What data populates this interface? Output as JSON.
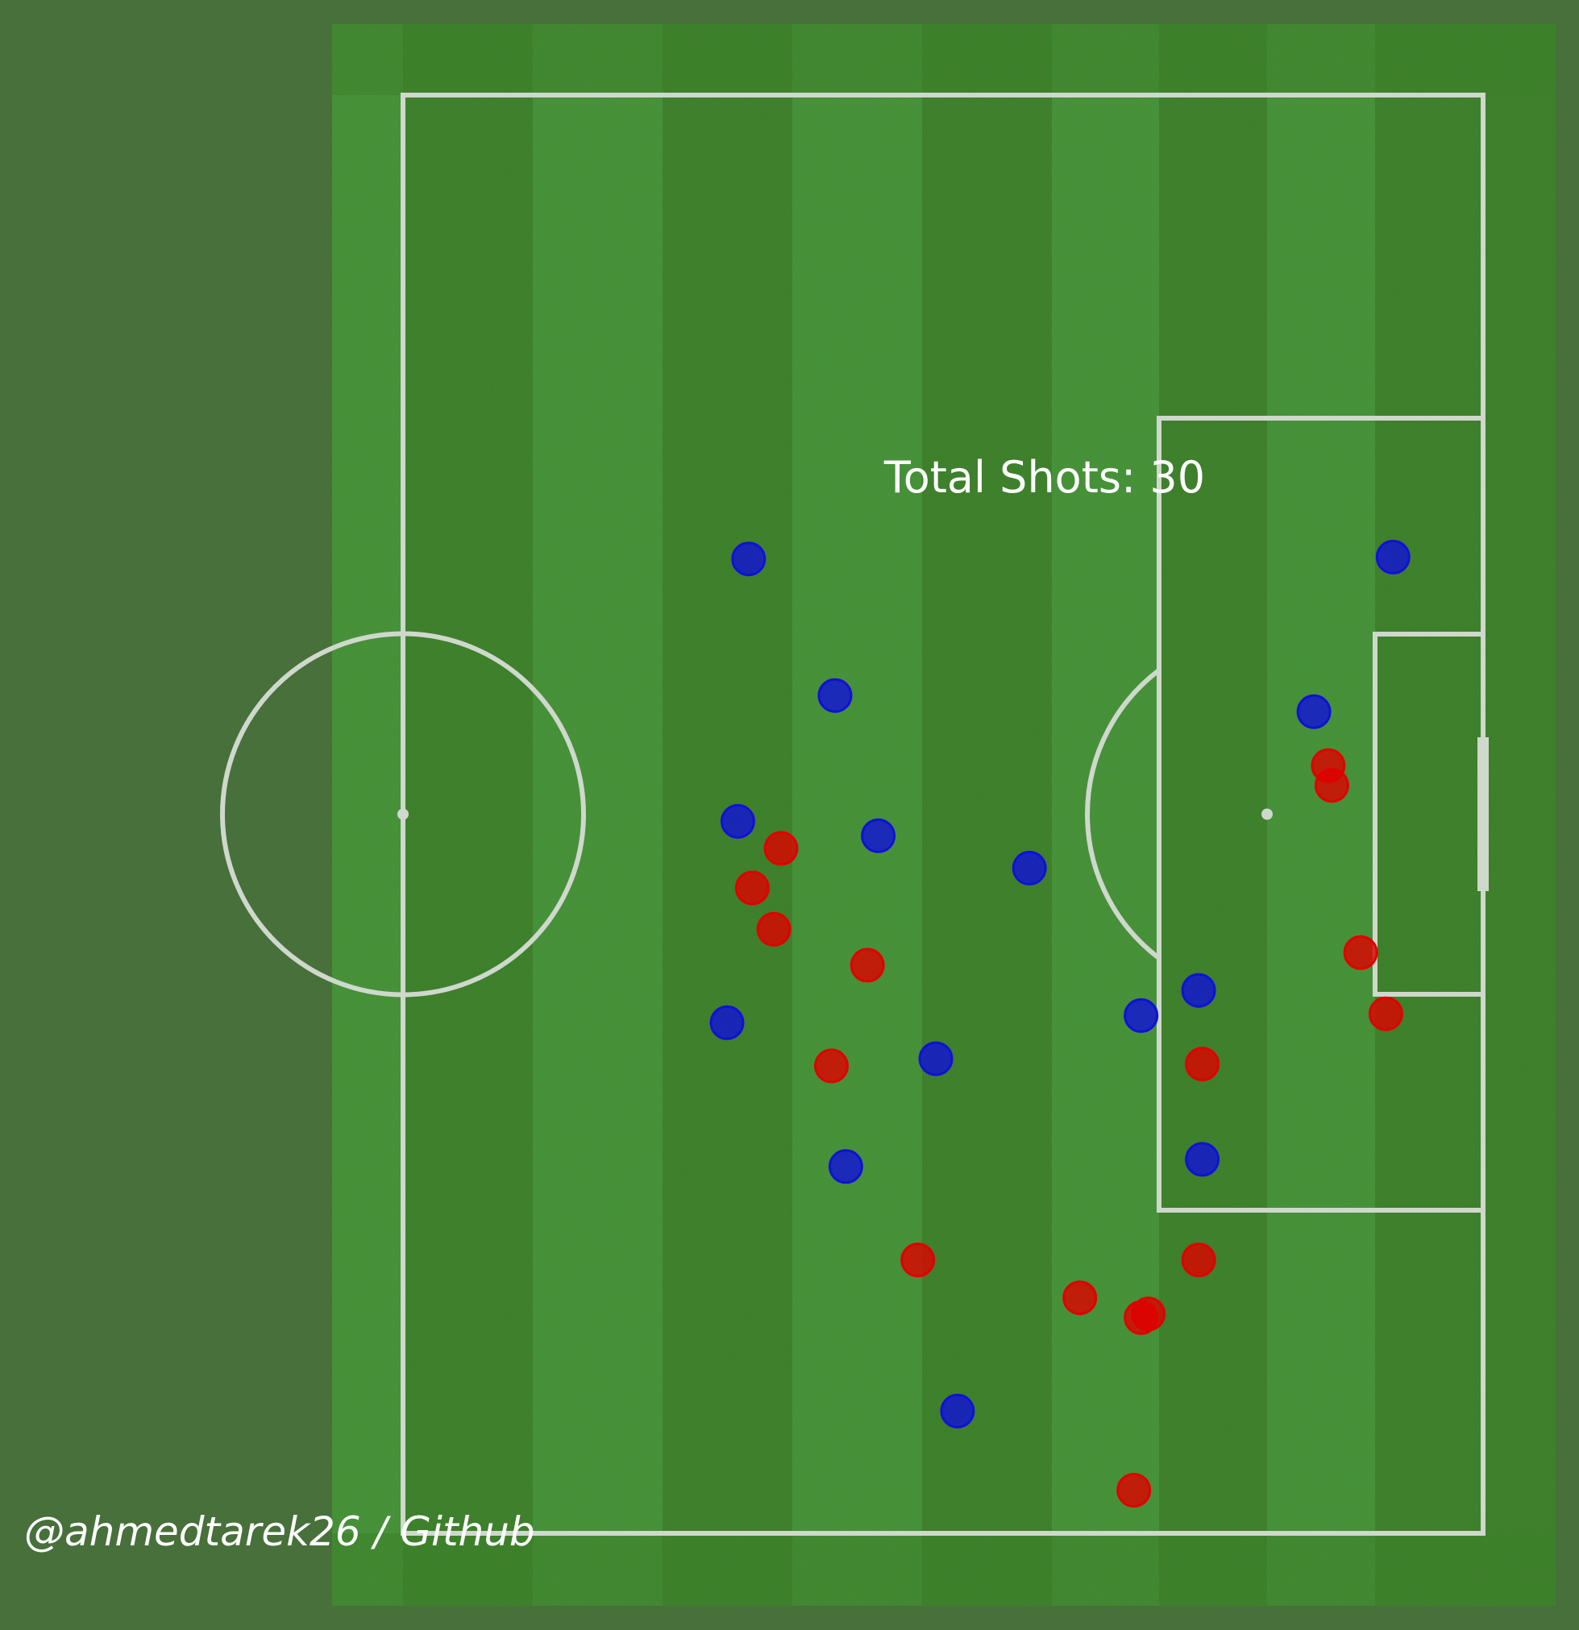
{
  "chart_data": {
    "type": "scatter",
    "title": "Total Shots: 30",
    "background_color": "#47703a",
    "pitch_colors": {
      "light": "#4a9a3c",
      "dark": "#42882e",
      "lines": "#cfd8cc"
    },
    "series": [
      {
        "color": "#1010d8",
        "x": [
          79.2,
          84.0,
          78.6,
          86.4,
          94.8,
          78.0,
          89.6,
          101.0,
          104.2,
          84.6,
          104.4,
          90.8,
          110.6,
          115.0
        ],
        "y": [
          25.8,
          33.4,
          40.4,
          41.2,
          43.0,
          51.6,
          53.6,
          51.2,
          49.8,
          59.6,
          59.2,
          73.2,
          34.3,
          25.7
        ]
      },
      {
        "color": "#e00000",
        "x": [
          81.0,
          79.4,
          80.6,
          85.8,
          83.8,
          111.4,
          111.6,
          113.2,
          104.4,
          114.6,
          88.6,
          104.2,
          97.6,
          101.0,
          101.4,
          100.6
        ],
        "y": [
          41.9,
          44.1,
          46.4,
          48.4,
          54.0,
          37.3,
          38.4,
          47.7,
          53.9,
          51.1,
          64.8,
          64.8,
          66.9,
          68.0,
          67.8,
          77.6
        ]
      }
    ]
  },
  "watermark": "@ahmedtarek26 / Github"
}
